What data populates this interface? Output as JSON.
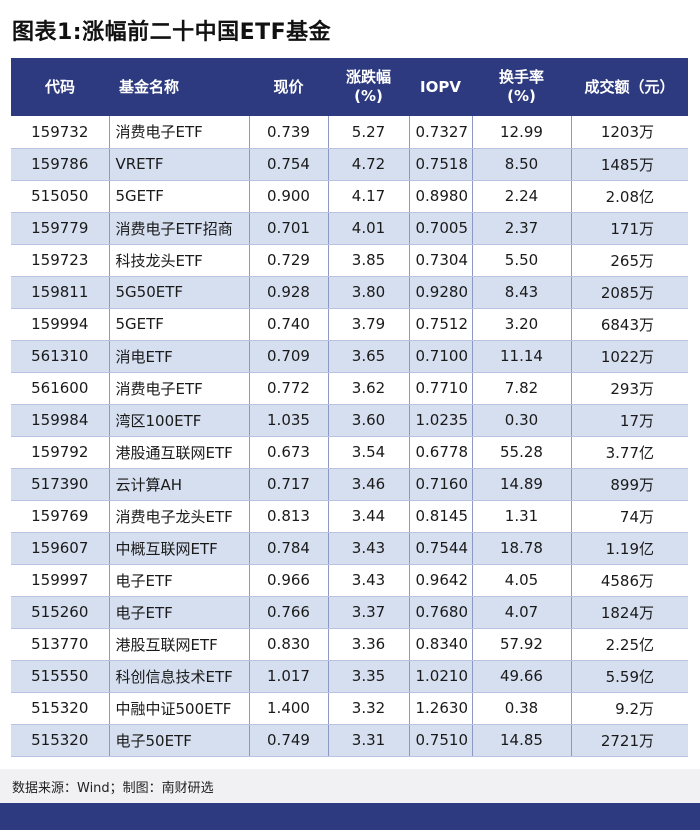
{
  "title": "图表1:涨幅前二十中国ETF基金",
  "table": {
    "headers": {
      "code": "代码",
      "name": "基金名称",
      "price": "现价",
      "change_line1": "涨跌幅",
      "change_line2": "(%)",
      "iopv": "IOPV",
      "turnover_line1": "换手率",
      "turnover_line2": "(%)",
      "amount": "成交额（元）"
    },
    "rows": [
      {
        "code": "159732",
        "name": "消费电子ETF",
        "price": "0.739",
        "change": "5.27",
        "iopv": "0.7327",
        "turnover": "12.99",
        "amount": "1203万"
      },
      {
        "code": "159786",
        "name": "VRETF",
        "price": "0.754",
        "change": "4.72",
        "iopv": "0.7518",
        "turnover": "8.50",
        "amount": "1485万"
      },
      {
        "code": "515050",
        "name": "5GETF",
        "price": "0.900",
        "change": "4.17",
        "iopv": "0.8980",
        "turnover": "2.24",
        "amount": "2.08亿"
      },
      {
        "code": "159779",
        "name": "消费电子ETF招商",
        "price": "0.701",
        "change": "4.01",
        "iopv": "0.7005",
        "turnover": "2.37",
        "amount": "171万"
      },
      {
        "code": "159723",
        "name": "科技龙头ETF",
        "price": "0.729",
        "change": "3.85",
        "iopv": "0.7304",
        "turnover": "5.50",
        "amount": "265万"
      },
      {
        "code": "159811",
        "name": "5G50ETF",
        "price": "0.928",
        "change": "3.80",
        "iopv": "0.9280",
        "turnover": "8.43",
        "amount": "2085万"
      },
      {
        "code": "159994",
        "name": "5GETF",
        "price": "0.740",
        "change": "3.79",
        "iopv": "0.7512",
        "turnover": "3.20",
        "amount": "6843万"
      },
      {
        "code": "561310",
        "name": "消电ETF",
        "price": "0.709",
        "change": "3.65",
        "iopv": "0.7100",
        "turnover": "11.14",
        "amount": "1022万"
      },
      {
        "code": "561600",
        "name": "消费电子ETF",
        "price": "0.772",
        "change": "3.62",
        "iopv": "0.7710",
        "turnover": "7.82",
        "amount": "293万"
      },
      {
        "code": "159984",
        "name": "湾区100ETF",
        "price": "1.035",
        "change": "3.60",
        "iopv": "1.0235",
        "turnover": "0.30",
        "amount": "17万"
      },
      {
        "code": "159792",
        "name": "港股通互联网ETF",
        "price": "0.673",
        "change": "3.54",
        "iopv": "0.6778",
        "turnover": "55.28",
        "amount": "3.77亿"
      },
      {
        "code": "517390",
        "name": "云计算AH",
        "price": "0.717",
        "change": "3.46",
        "iopv": "0.7160",
        "turnover": "14.89",
        "amount": "899万"
      },
      {
        "code": "159769",
        "name": "消费电子龙头ETF",
        "price": "0.813",
        "change": "3.44",
        "iopv": "0.8145",
        "turnover": "1.31",
        "amount": "74万"
      },
      {
        "code": "159607",
        "name": "中概互联网ETF",
        "price": "0.784",
        "change": "3.43",
        "iopv": "0.7544",
        "turnover": "18.78",
        "amount": "1.19亿"
      },
      {
        "code": "159997",
        "name": "电子ETF",
        "price": "0.966",
        "change": "3.43",
        "iopv": "0.9642",
        "turnover": "4.05",
        "amount": "4586万"
      },
      {
        "code": "515260",
        "name": "电子ETF",
        "price": "0.766",
        "change": "3.37",
        "iopv": "0.7680",
        "turnover": "4.07",
        "amount": "1824万"
      },
      {
        "code": "513770",
        "name": "港股互联网ETF",
        "price": "0.830",
        "change": "3.36",
        "iopv": "0.8340",
        "turnover": "57.92",
        "amount": "2.25亿"
      },
      {
        "code": "515550",
        "name": "科创信息技术ETF",
        "price": "1.017",
        "change": "3.35",
        "iopv": "1.0210",
        "turnover": "49.66",
        "amount": "5.59亿"
      },
      {
        "code": "515320",
        "name": "中融中证500ETF",
        "price": "1.400",
        "change": "3.32",
        "iopv": "1.2630",
        "turnover": "0.38",
        "amount": "9.2万"
      },
      {
        "code": "515320",
        "name": "电子50ETF",
        "price": "0.749",
        "change": "3.31",
        "iopv": "0.7510",
        "turnover": "14.85",
        "amount": "2721万"
      }
    ]
  },
  "source": "数据来源：Wind；制图：南财研选",
  "colors": {
    "header_bg": "#2d3a80",
    "stripe_bg": "#d6dff0",
    "footer_bg": "#2d3a80"
  }
}
